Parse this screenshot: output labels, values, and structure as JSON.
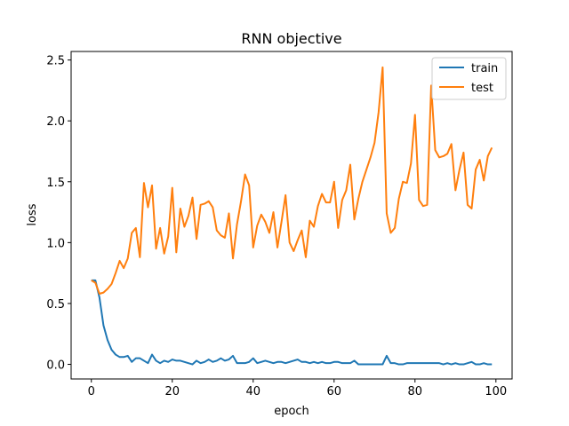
{
  "chart_data": {
    "type": "line",
    "title": "RNN objective",
    "xlabel": "epoch",
    "ylabel": "loss",
    "xlim": [
      -5,
      104
    ],
    "ylim": [
      -0.12,
      2.57
    ],
    "x_ticks": [
      0,
      20,
      40,
      60,
      80,
      100
    ],
    "y_ticks": [
      0.0,
      0.5,
      1.0,
      1.5,
      2.0,
      2.5
    ],
    "x_tick_labels": [
      "0",
      "20",
      "40",
      "60",
      "80",
      "100"
    ],
    "y_tick_labels": [
      "0.0",
      "0.5",
      "1.0",
      "1.5",
      "2.0",
      "2.5"
    ],
    "grid": false,
    "legend_position": "top-right",
    "x": [
      0,
      1,
      2,
      3,
      4,
      5,
      6,
      7,
      8,
      9,
      10,
      11,
      12,
      13,
      14,
      15,
      16,
      17,
      18,
      19,
      20,
      21,
      22,
      23,
      24,
      25,
      26,
      27,
      28,
      29,
      30,
      31,
      32,
      33,
      34,
      35,
      36,
      37,
      38,
      39,
      40,
      41,
      42,
      43,
      44,
      45,
      46,
      47,
      48,
      49,
      50,
      51,
      52,
      53,
      54,
      55,
      56,
      57,
      58,
      59,
      60,
      61,
      62,
      63,
      64,
      65,
      66,
      67,
      68,
      69,
      70,
      71,
      72,
      73,
      74,
      75,
      76,
      77,
      78,
      79,
      80,
      81,
      82,
      83,
      84,
      85,
      86,
      87,
      88,
      89,
      90,
      91,
      92,
      93,
      94,
      95,
      96,
      97,
      98,
      99
    ],
    "series": [
      {
        "name": "train",
        "color": "#1f77b4",
        "values": [
          0.69,
          0.69,
          0.55,
          0.32,
          0.2,
          0.12,
          0.08,
          0.06,
          0.06,
          0.07,
          0.02,
          0.05,
          0.05,
          0.03,
          0.01,
          0.08,
          0.03,
          0.01,
          0.03,
          0.02,
          0.04,
          0.03,
          0.03,
          0.02,
          0.01,
          0.0,
          0.03,
          0.01,
          0.02,
          0.04,
          0.02,
          0.03,
          0.05,
          0.03,
          0.04,
          0.07,
          0.01,
          0.01,
          0.01,
          0.02,
          0.05,
          0.01,
          0.02,
          0.03,
          0.02,
          0.01,
          0.02,
          0.02,
          0.01,
          0.02,
          0.03,
          0.04,
          0.02,
          0.02,
          0.01,
          0.02,
          0.01,
          0.02,
          0.01,
          0.01,
          0.02,
          0.02,
          0.01,
          0.01,
          0.01,
          0.03,
          0.0,
          0.0,
          0.0,
          0.0,
          0.0,
          0.0,
          0.0,
          0.07,
          0.01,
          0.01,
          0.0,
          0.0,
          0.01,
          0.01,
          0.01,
          0.01,
          0.01,
          0.01,
          0.01,
          0.01,
          0.01,
          0.0,
          0.01,
          0.0,
          0.01,
          0.0,
          0.0,
          0.01,
          0.02,
          0.0,
          0.0,
          0.01,
          0.0,
          0.0
        ]
      },
      {
        "name": "test",
        "color": "#ff7f0e",
        "values": [
          0.69,
          0.67,
          0.58,
          0.59,
          0.62,
          0.66,
          0.75,
          0.85,
          0.79,
          0.87,
          1.08,
          1.12,
          0.88,
          1.49,
          1.29,
          1.47,
          0.95,
          1.12,
          0.91,
          1.05,
          1.45,
          0.92,
          1.28,
          1.13,
          1.22,
          1.37,
          1.03,
          1.31,
          1.32,
          1.34,
          1.29,
          1.1,
          1.06,
          1.04,
          1.24,
          0.87,
          1.15,
          1.34,
          1.56,
          1.47,
          0.96,
          1.14,
          1.23,
          1.17,
          1.08,
          1.25,
          0.96,
          1.17,
          1.39,
          1.0,
          0.93,
          1.02,
          1.1,
          0.88,
          1.18,
          1.13,
          1.3,
          1.4,
          1.33,
          1.33,
          1.5,
          1.12,
          1.35,
          1.43,
          1.64,
          1.19,
          1.36,
          1.5,
          1.6,
          1.7,
          1.82,
          2.07,
          2.44,
          1.24,
          1.08,
          1.12,
          1.36,
          1.5,
          1.49,
          1.65,
          2.05,
          1.35,
          1.3,
          1.31,
          2.29,
          1.76,
          1.7,
          1.71,
          1.73,
          1.81,
          1.43,
          1.6,
          1.74,
          1.31,
          1.28,
          1.6,
          1.68,
          1.51,
          1.71,
          1.78
        ]
      }
    ]
  }
}
